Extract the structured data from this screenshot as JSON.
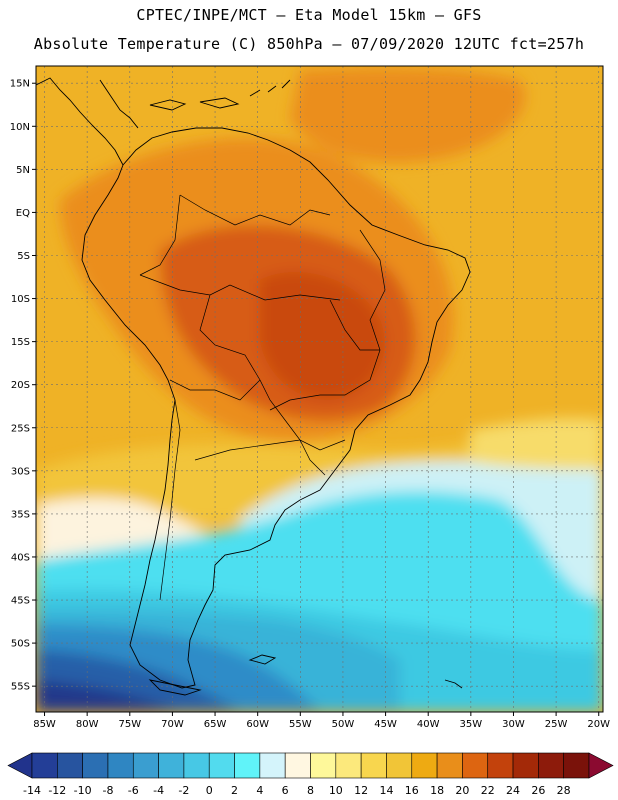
{
  "header": {
    "line1": "CPTEC/INPE/MCT –  Eta Model 15km – GFS",
    "line2": "Absolute Temperature (C) 850hPa – 07/09/2020 12UTC fct=257h"
  },
  "map": {
    "lon_range": [
      -86,
      -19.5
    ],
    "lat_range": [
      -58,
      17
    ],
    "lat_ticks": [
      {
        "v": 15,
        "label": "15N"
      },
      {
        "v": 10,
        "label": "10N"
      },
      {
        "v": 5,
        "label": "5N"
      },
      {
        "v": 0,
        "label": "EQ"
      },
      {
        "v": -5,
        "label": "5S"
      },
      {
        "v": -10,
        "label": "10S"
      },
      {
        "v": -15,
        "label": "15S"
      },
      {
        "v": -20,
        "label": "20S"
      },
      {
        "v": -25,
        "label": "25S"
      },
      {
        "v": -30,
        "label": "30S"
      },
      {
        "v": -35,
        "label": "35S"
      },
      {
        "v": -40,
        "label": "40S"
      },
      {
        "v": -45,
        "label": "45S"
      },
      {
        "v": -50,
        "label": "50S"
      },
      {
        "v": -55,
        "label": "55S"
      }
    ],
    "lon_ticks": [
      {
        "v": -85,
        "label": "85W"
      },
      {
        "v": -80,
        "label": "80W"
      },
      {
        "v": -75,
        "label": "75W"
      },
      {
        "v": -70,
        "label": "70W"
      },
      {
        "v": -65,
        "label": "65W"
      },
      {
        "v": -60,
        "label": "60W"
      },
      {
        "v": -55,
        "label": "55W"
      },
      {
        "v": -50,
        "label": "50W"
      },
      {
        "v": -45,
        "label": "45W"
      },
      {
        "v": -40,
        "label": "40W"
      },
      {
        "v": -35,
        "label": "35W"
      },
      {
        "v": -30,
        "label": "30W"
      },
      {
        "v": -25,
        "label": "25W"
      },
      {
        "v": -20,
        "label": "20W"
      }
    ],
    "colors": {
      "bg": "#efb226",
      "warm": "#eb8e1c",
      "warmer": "#d75c12",
      "hot": "#c9480d",
      "yellow": "#f2c53a",
      "lightyellow": "#f7dc6a",
      "paleyellow": "#fdf4bc",
      "cream": "#fdf3de",
      "lightcyan": "#cdf1f6",
      "cyan": "#4ddff0",
      "midcyan": "#3cc9e2",
      "teal": "#39b3d8",
      "steel": "#2d8cc8",
      "blue": "#275fa8",
      "navy": "#22388a"
    }
  },
  "colorbar": {
    "labels": [
      "-14",
      "-12",
      "-10",
      "-8",
      "-6",
      "-4",
      "-2",
      "0",
      "2",
      "4",
      "6",
      "8",
      "10",
      "12",
      "14",
      "16",
      "18",
      "20",
      "22",
      "24",
      "26",
      "28"
    ],
    "colors": [
      "#21338c",
      "#233e97",
      "#27549f",
      "#2b6fb3",
      "#2f86c2",
      "#3a9ed0",
      "#3fb2da",
      "#47c8e5",
      "#52dbee",
      "#60f3f9",
      "#d4f4fb",
      "#fff7e1",
      "#fef89a",
      "#fce97c",
      "#f8d64e",
      "#f1c537",
      "#eeaa12",
      "#e98e1a",
      "#dd6511",
      "#c3420c",
      "#a32908",
      "#8d1b0b",
      "#7a120a",
      "#8b0a30"
    ]
  }
}
